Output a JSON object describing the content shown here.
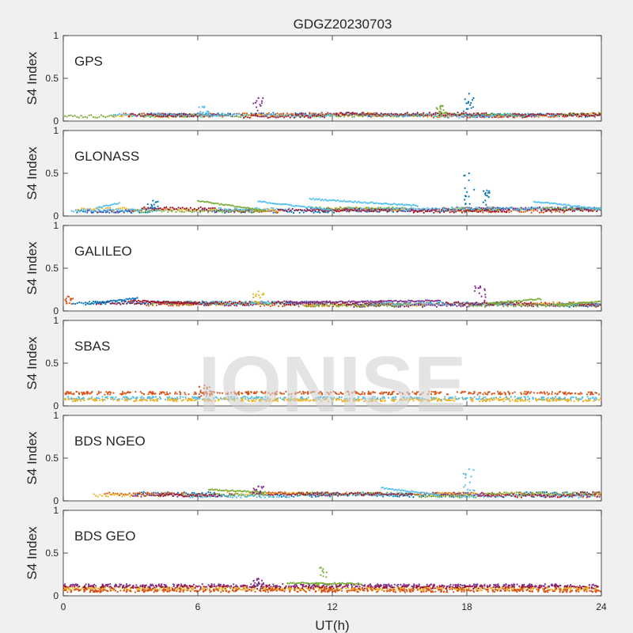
{
  "figure": {
    "title": "GDGZ20230703",
    "watermark": "IONISE",
    "xlabel": "UT(h)",
    "ylabel": "S4 Index"
  },
  "chart_data": {
    "type": "scatter",
    "x_range": [
      0,
      24
    ],
    "x_ticks": [
      0,
      6,
      12,
      18,
      24
    ],
    "y_range": [
      0,
      1
    ],
    "y_ticks": [
      0,
      0.5,
      1
    ],
    "xlabel": "UT(h)",
    "ylabel": "S4 Index",
    "colors": [
      "#0072BD",
      "#D95319",
      "#EDB120",
      "#7E2F8E",
      "#77AC30",
      "#4DBEEE",
      "#A2142F"
    ],
    "panels": [
      {
        "label": "GPS",
        "baseline": 0.07,
        "spikes": [
          {
            "x": 8.7,
            "y_max": 0.27,
            "color": "#7E2F8E"
          },
          {
            "x": 18.1,
            "y_max": 0.32,
            "color": "#0072BD"
          },
          {
            "x": 16.9,
            "y_max": 0.18,
            "color": "#77AC30"
          },
          {
            "x": 6.3,
            "y_max": 0.17,
            "color": "#4DBEEE"
          }
        ]
      },
      {
        "label": "GLONASS",
        "baseline": 0.07,
        "spikes": [
          {
            "x": 18.1,
            "y_max": 0.5,
            "color": "#0072BD"
          },
          {
            "x": 18.9,
            "y_max": 0.3,
            "color": "#0072BD"
          },
          {
            "x": 4.0,
            "y_max": 0.18,
            "color": "#0072BD"
          }
        ],
        "arcs": [
          {
            "x0": 6.0,
            "x1": 9.0,
            "y0": 0.18,
            "y1": 0.06,
            "color": "#77AC30"
          },
          {
            "x0": 8.7,
            "x1": 12.0,
            "y0": 0.17,
            "y1": 0.07,
            "color": "#4DBEEE"
          },
          {
            "x0": 11.0,
            "x1": 15.8,
            "y0": 0.2,
            "y1": 0.12,
            "color": "#4DBEEE"
          },
          {
            "x0": 21.0,
            "x1": 24.0,
            "y0": 0.17,
            "y1": 0.08,
            "color": "#4DBEEE"
          },
          {
            "x0": 1.5,
            "x1": 2.5,
            "y0": 0.1,
            "y1": 0.15,
            "color": "#4DBEEE"
          }
        ]
      },
      {
        "label": "GALILEO",
        "baseline": 0.08,
        "spikes": [
          {
            "x": 18.6,
            "y_max": 0.29,
            "color": "#7E2F8E"
          },
          {
            "x": 8.7,
            "y_max": 0.23,
            "color": "#EDB120"
          },
          {
            "x": 0.2,
            "y_max": 0.17,
            "color": "#D95319"
          }
        ],
        "arcs": [
          {
            "x0": 1.0,
            "x1": 3.3,
            "y0": 0.08,
            "y1": 0.15,
            "color": "#0072BD"
          },
          {
            "x0": 3.0,
            "x1": 6.0,
            "y0": 0.12,
            "y1": 0.09,
            "color": "#A2142F"
          },
          {
            "x0": 10.0,
            "x1": 16.8,
            "y0": 0.1,
            "y1": 0.12,
            "color": "#7E2F8E"
          },
          {
            "x0": 19.0,
            "x1": 21.3,
            "y0": 0.09,
            "y1": 0.14,
            "color": "#77AC30"
          },
          {
            "x0": 22.0,
            "x1": 24.0,
            "y0": 0.07,
            "y1": 0.11,
            "color": "#77AC30"
          }
        ]
      },
      {
        "label": "SBAS",
        "baseline": 0.1,
        "bands": [
          {
            "level": 0.15,
            "color": "#D95319"
          },
          {
            "level": 0.09,
            "color": "#4DBEEE"
          },
          {
            "level": 0.07,
            "color": "#EDB120"
          }
        ],
        "spikes": [
          {
            "x": 6.3,
            "y_max": 0.24,
            "color": "#D95319"
          }
        ]
      },
      {
        "label": "BDS NGEO",
        "baseline": 0.07,
        "spikes": [
          {
            "x": 18.1,
            "y_max": 0.37,
            "color": "#4DBEEE"
          },
          {
            "x": 8.7,
            "y_max": 0.17,
            "color": "#7E2F8E"
          }
        ],
        "arcs": [
          {
            "x0": 14.2,
            "x1": 16.8,
            "y0": 0.15,
            "y1": 0.07,
            "color": "#4DBEEE"
          },
          {
            "x0": 6.5,
            "x1": 9.0,
            "y0": 0.13,
            "y1": 0.1,
            "color": "#77AC30"
          }
        ]
      },
      {
        "label": "BDS GEO",
        "baseline": 0.1,
        "bands": [
          {
            "level": 0.12,
            "color": "#7E2F8E"
          },
          {
            "level": 0.1,
            "color": "#A2142F"
          },
          {
            "level": 0.08,
            "color": "#EDB120"
          },
          {
            "level": 0.06,
            "color": "#D95319"
          }
        ],
        "spikes": [
          {
            "x": 11.5,
            "y_max": 0.33,
            "color": "#77AC30"
          },
          {
            "x": 8.7,
            "y_max": 0.2,
            "color": "#7E2F8E"
          }
        ],
        "arcs": [
          {
            "x0": 10.0,
            "x1": 13.3,
            "y0": 0.15,
            "y1": 0.14,
            "color": "#77AC30"
          }
        ]
      }
    ]
  }
}
